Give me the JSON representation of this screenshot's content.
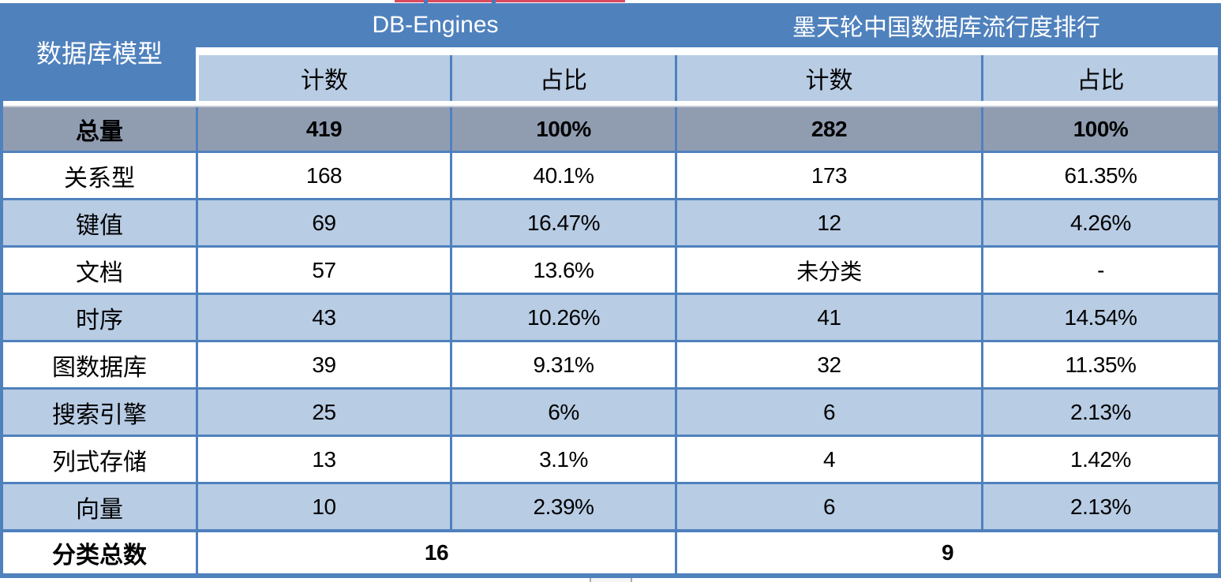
{
  "table": {
    "corner_label": "数据库模型",
    "groups": [
      {
        "title": "DB-Engines",
        "sub": [
          "计数",
          "占比"
        ]
      },
      {
        "title": "墨天轮中国数据库流行度排行",
        "sub": [
          "计数",
          "占比"
        ]
      }
    ],
    "total_row": {
      "label": "总量",
      "values": [
        "419",
        "100%",
        "282",
        "100%"
      ]
    },
    "rows": [
      {
        "label": "关系型",
        "values": [
          "168",
          "40.1%",
          "173",
          "61.35%"
        ]
      },
      {
        "label": "键值",
        "values": [
          "69",
          "16.47%",
          "12",
          "4.26%"
        ]
      },
      {
        "label": "文档",
        "values": [
          "57",
          "13.6%",
          "未分类",
          "-"
        ]
      },
      {
        "label": "时序",
        "values": [
          "43",
          "10.26%",
          "41",
          "14.54%"
        ]
      },
      {
        "label": "图数据库",
        "values": [
          "39",
          "9.31%",
          "32",
          "11.35%"
        ]
      },
      {
        "label": "搜索引擎",
        "values": [
          "25",
          "6%",
          "6",
          "2.13%"
        ]
      },
      {
        "label": "列式存储",
        "values": [
          "13",
          "3.1%",
          "4",
          "1.42%"
        ]
      },
      {
        "label": "向量",
        "values": [
          "10",
          "2.39%",
          "6",
          "2.13%"
        ]
      }
    ],
    "footer_row": {
      "label": "分类总数",
      "values": [
        "16",
        "9"
      ]
    }
  },
  "colors": {
    "header_blue": "#4F81BD",
    "light_blue": "#B8CCE4",
    "gray_row": "#909DB1",
    "border_blue": "#4F81BD",
    "header_text": "#FFFFFF",
    "body_text": "#000000",
    "artifact_red": "#D94A5E"
  },
  "chart_data": {
    "type": "table",
    "columns": [
      "数据库模型",
      "DB-Engines 计数",
      "DB-Engines 占比",
      "墨天轮中国数据库流行度排行 计数",
      "墨天轮中国数据库流行度排行 占比"
    ],
    "rows": [
      [
        "总量",
        "419",
        "100%",
        "282",
        "100%"
      ],
      [
        "关系型",
        "168",
        "40.1%",
        "173",
        "61.35%"
      ],
      [
        "键值",
        "69",
        "16.47%",
        "12",
        "4.26%"
      ],
      [
        "文档",
        "57",
        "13.6%",
        "未分类",
        "-"
      ],
      [
        "时序",
        "43",
        "10.26%",
        "41",
        "14.54%"
      ],
      [
        "图数据库",
        "39",
        "9.31%",
        "32",
        "11.35%"
      ],
      [
        "搜索引擎",
        "25",
        "6%",
        "6",
        "2.13%"
      ],
      [
        "列式存储",
        "13",
        "3.1%",
        "4",
        "1.42%"
      ],
      [
        "向量",
        "10",
        "2.39%",
        "6",
        "2.13%"
      ],
      [
        "分类总数",
        "16",
        "",
        "9",
        ""
      ]
    ]
  }
}
